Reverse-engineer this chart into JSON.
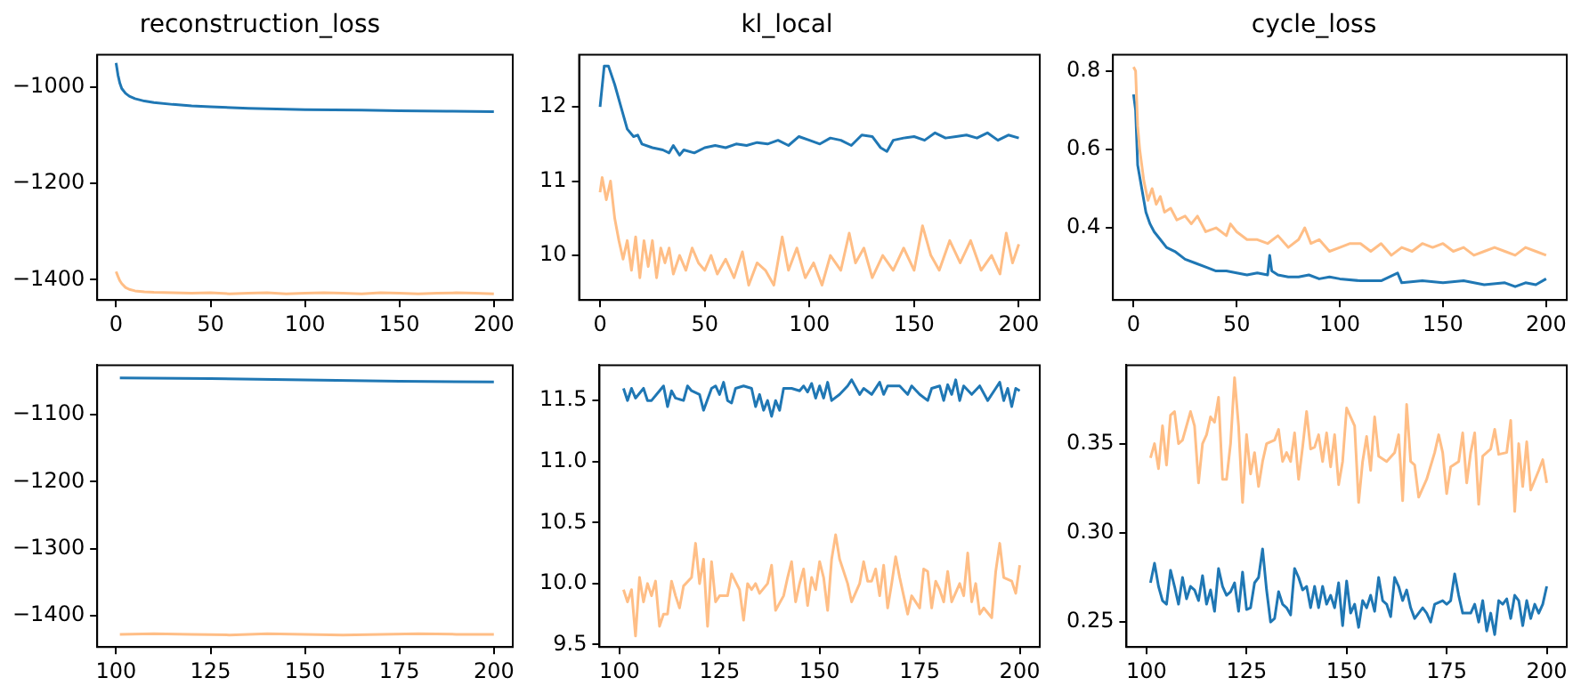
{
  "chart_data": [
    {
      "type": "line",
      "title": "reconstruction_loss",
      "xlim": [
        -10,
        210
      ],
      "xticks": [
        0,
        50,
        100,
        150,
        200
      ],
      "ylim": [
        -1442,
        -933
      ],
      "yticks": [
        {
          "value": -1400,
          "label": "−1400"
        },
        {
          "value": -1200,
          "label": "−1200"
        },
        {
          "value": -1000,
          "label": "−1000"
        }
      ],
      "series": [
        {
          "color": "#1f77b4",
          "x": [
            0,
            1,
            2,
            3,
            5,
            7,
            10,
            15,
            20,
            30,
            40,
            50,
            70,
            100,
            130,
            150,
            175,
            200
          ],
          "values": [
            -950,
            -975,
            -992,
            -1003,
            -1013,
            -1019,
            -1024,
            -1029,
            -1032,
            -1036,
            -1039,
            -1041,
            -1044,
            -1047,
            -1048,
            -1049,
            -1050,
            -1051
          ]
        },
        {
          "color": "#ffbe86",
          "x": [
            0,
            1,
            2,
            3,
            5,
            7,
            10,
            15,
            20,
            30,
            40,
            50,
            60,
            70,
            80,
            90,
            100,
            110,
            120,
            130,
            140,
            150,
            160,
            170,
            180,
            190,
            200
          ],
          "values": [
            -1383,
            -1393,
            -1402,
            -1408,
            -1416,
            -1420,
            -1423,
            -1425,
            -1426,
            -1427,
            -1428,
            -1427,
            -1429,
            -1428,
            -1427,
            -1429,
            -1428,
            -1427,
            -1428,
            -1429,
            -1427,
            -1428,
            -1429,
            -1428,
            -1427,
            -1428,
            -1429
          ]
        }
      ]
    },
    {
      "type": "line",
      "title": "kl_local",
      "xlim": [
        -10,
        210
      ],
      "xticks": [
        0,
        50,
        100,
        150,
        200
      ],
      "ylim": [
        9.4,
        12.7
      ],
      "yticks": [
        10,
        11,
        12
      ],
      "series": [
        {
          "color": "#1f77b4",
          "x": [
            0,
            2,
            4,
            7,
            10,
            13,
            16,
            18,
            20,
            25,
            30,
            33,
            35,
            38,
            40,
            45,
            50,
            55,
            60,
            65,
            70,
            75,
            80,
            85,
            90,
            95,
            100,
            105,
            110,
            115,
            120,
            125,
            130,
            134,
            137,
            140,
            145,
            150,
            155,
            160,
            165,
            170,
            175,
            180,
            185,
            190,
            195,
            200
          ],
          "values": [
            12.0,
            12.55,
            12.55,
            12.3,
            12.0,
            11.7,
            11.6,
            11.62,
            11.5,
            11.45,
            11.42,
            11.38,
            11.48,
            11.35,
            11.42,
            11.38,
            11.45,
            11.48,
            11.45,
            11.5,
            11.48,
            11.52,
            11.5,
            11.55,
            11.48,
            11.6,
            11.55,
            11.5,
            11.58,
            11.55,
            11.48,
            11.62,
            11.6,
            11.45,
            11.4,
            11.55,
            11.58,
            11.6,
            11.55,
            11.65,
            11.58,
            11.6,
            11.62,
            11.58,
            11.65,
            11.55,
            11.62,
            11.58
          ]
        },
        {
          "color": "#ffbe86",
          "x": [
            0,
            1,
            3,
            5,
            7,
            9,
            11,
            13,
            15,
            17,
            19,
            21,
            23,
            25,
            27,
            29,
            31,
            33,
            35,
            38,
            41,
            44,
            47,
            50,
            53,
            56,
            60,
            64,
            68,
            71,
            75,
            79,
            83,
            87,
            90,
            94,
            98,
            102,
            106,
            110,
            115,
            119,
            122,
            126,
            130,
            135,
            140,
            145,
            150,
            154,
            158,
            162,
            167,
            172,
            177,
            182,
            187,
            191,
            194,
            197,
            200
          ],
          "values": [
            10.85,
            11.05,
            10.75,
            11.0,
            10.5,
            10.2,
            9.95,
            10.2,
            9.8,
            10.25,
            9.7,
            10.2,
            9.85,
            10.2,
            9.7,
            10.1,
            9.9,
            10.1,
            9.75,
            10.0,
            9.8,
            10.1,
            9.9,
            9.8,
            10.0,
            9.75,
            9.95,
            9.7,
            10.05,
            9.6,
            9.9,
            9.8,
            9.6,
            10.25,
            9.8,
            10.1,
            9.7,
            9.9,
            9.6,
            10.0,
            9.8,
            10.3,
            9.9,
            10.1,
            9.7,
            10.0,
            9.8,
            10.1,
            9.8,
            10.4,
            10.0,
            9.8,
            10.2,
            9.9,
            10.2,
            9.8,
            10.0,
            9.75,
            10.3,
            9.9,
            10.15
          ]
        }
      ]
    },
    {
      "type": "line",
      "title": "cycle_loss",
      "xlim": [
        -10,
        210
      ],
      "xticks": [
        0,
        50,
        100,
        150,
        200
      ],
      "ylim": [
        0.216,
        0.841
      ],
      "yticks": [
        0.4,
        0.6,
        0.8
      ],
      "series": [
        {
          "color": "#ffbe86",
          "x": [
            0,
            1,
            2,
            3,
            5,
            7,
            9,
            11,
            13,
            15,
            18,
            21,
            25,
            28,
            31,
            35,
            40,
            45,
            47,
            50,
            55,
            60,
            65,
            70,
            75,
            80,
            83,
            86,
            90,
            95,
            100,
            105,
            110,
            115,
            120,
            125,
            130,
            135,
            140,
            145,
            150,
            155,
            160,
            165,
            170,
            175,
            180,
            185,
            190,
            195,
            200
          ],
          "values": [
            0.81,
            0.8,
            0.66,
            0.6,
            0.52,
            0.47,
            0.5,
            0.46,
            0.48,
            0.44,
            0.45,
            0.42,
            0.43,
            0.41,
            0.43,
            0.39,
            0.4,
            0.38,
            0.41,
            0.39,
            0.37,
            0.37,
            0.36,
            0.38,
            0.35,
            0.37,
            0.4,
            0.36,
            0.37,
            0.34,
            0.35,
            0.36,
            0.36,
            0.34,
            0.36,
            0.33,
            0.35,
            0.34,
            0.36,
            0.35,
            0.36,
            0.34,
            0.35,
            0.33,
            0.34,
            0.35,
            0.34,
            0.33,
            0.35,
            0.34,
            0.33
          ]
        },
        {
          "color": "#1f77b4",
          "x": [
            0,
            1,
            2,
            4,
            6,
            8,
            10,
            13,
            16,
            20,
            25,
            30,
            35,
            40,
            45,
            50,
            55,
            60,
            65,
            66,
            67,
            70,
            75,
            80,
            85,
            90,
            95,
            100,
            110,
            120,
            128,
            130,
            140,
            150,
            160,
            170,
            180,
            185,
            190,
            195,
            200
          ],
          "values": [
            0.74,
            0.7,
            0.56,
            0.5,
            0.44,
            0.41,
            0.39,
            0.37,
            0.35,
            0.34,
            0.32,
            0.31,
            0.3,
            0.29,
            0.29,
            0.285,
            0.28,
            0.285,
            0.28,
            0.33,
            0.29,
            0.28,
            0.275,
            0.275,
            0.28,
            0.27,
            0.275,
            0.27,
            0.265,
            0.265,
            0.285,
            0.26,
            0.265,
            0.26,
            0.265,
            0.255,
            0.26,
            0.25,
            0.26,
            0.255,
            0.27
          ]
        }
      ]
    },
    {
      "type": "line",
      "xlim": [
        95,
        205
      ],
      "xticks": [
        100,
        125,
        150,
        175,
        200
      ],
      "ylim": [
        -1447,
        -1026
      ],
      "yticks": [
        {
          "value": -1400,
          "label": "−1400"
        },
        {
          "value": -1300,
          "label": "−1300"
        },
        {
          "value": -1200,
          "label": "−1200"
        },
        {
          "value": -1100,
          "label": "−1100"
        }
      ],
      "series": [
        {
          "color": "#1f77b4",
          "x": [
            101,
            125,
            150,
            175,
            200
          ],
          "values": [
            -1045,
            -1046,
            -1048,
            -1050,
            -1051
          ]
        },
        {
          "color": "#ffbe86",
          "x": [
            101,
            110,
            120,
            130,
            140,
            150,
            160,
            170,
            180,
            190,
            200
          ],
          "values": [
            -1428,
            -1427,
            -1428,
            -1429,
            -1427,
            -1428,
            -1429,
            -1428,
            -1427,
            -1428,
            -1428
          ]
        }
      ]
    },
    {
      "type": "line",
      "xlim": [
        95,
        205
      ],
      "xticks": [
        100,
        125,
        150,
        175,
        200
      ],
      "ylim": [
        9.48,
        11.79
      ],
      "yticks": [
        {
          "value": 9.5,
          "label": "9.5"
        },
        {
          "value": 10,
          "label": "10.0"
        },
        {
          "value": 10.5,
          "label": "10.5"
        },
        {
          "value": 11,
          "label": "11.0"
        },
        {
          "value": 11.5,
          "label": "11.5"
        }
      ],
      "series": [
        {
          "color": "#1f77b4",
          "x": [
            101,
            102,
            103,
            104,
            106,
            107,
            108,
            110,
            111,
            112,
            113,
            114,
            116,
            117,
            118,
            120,
            121,
            123,
            124,
            125,
            126,
            127,
            128,
            129,
            131,
            133,
            134,
            135,
            136,
            137,
            138,
            139,
            140,
            141,
            143,
            145,
            146,
            147,
            148,
            149,
            150,
            151,
            152,
            153,
            155,
            157,
            158,
            160,
            161,
            163,
            165,
            166,
            167,
            170,
            172,
            173,
            175,
            177,
            178,
            180,
            181,
            182,
            183,
            184,
            185,
            186,
            188,
            190,
            192,
            194,
            195,
            196,
            197,
            198,
            199,
            200
          ],
          "values": [
            11.6,
            11.5,
            11.6,
            11.52,
            11.6,
            11.5,
            11.5,
            11.58,
            11.62,
            11.45,
            11.58,
            11.52,
            11.5,
            11.62,
            11.58,
            11.55,
            11.42,
            11.6,
            11.62,
            11.55,
            11.65,
            11.5,
            11.48,
            11.6,
            11.62,
            11.6,
            11.45,
            11.55,
            11.42,
            11.5,
            11.37,
            11.5,
            11.42,
            11.6,
            11.6,
            11.58,
            11.62,
            11.57,
            11.64,
            11.52,
            11.62,
            11.52,
            11.65,
            11.5,
            11.55,
            11.62,
            11.67,
            11.55,
            11.6,
            11.55,
            11.65,
            11.55,
            11.62,
            11.62,
            11.55,
            11.62,
            11.55,
            11.5,
            11.6,
            11.62,
            11.5,
            11.63,
            11.55,
            11.67,
            11.5,
            11.62,
            11.55,
            11.62,
            11.5,
            11.6,
            11.65,
            11.5,
            11.6,
            11.45,
            11.6,
            11.58
          ]
        },
        {
          "color": "#ffbe86",
          "x": [
            101,
            102,
            103,
            104,
            105,
            106,
            107,
            108,
            109,
            110,
            111,
            112,
            113,
            114,
            115,
            116,
            118,
            119,
            120,
            121,
            122,
            123,
            124,
            125,
            127,
            128,
            130,
            131,
            132,
            133,
            134,
            135,
            137,
            138,
            139,
            141,
            142,
            143,
            144,
            145,
            146,
            147,
            148,
            149,
            150,
            151,
            152,
            153,
            154,
            155,
            157,
            158,
            160,
            161,
            162,
            163,
            164,
            165,
            166,
            167,
            168,
            169,
            170,
            171,
            172,
            173,
            175,
            176,
            177,
            178,
            179,
            180,
            181,
            182,
            183,
            185,
            186,
            187,
            188,
            189,
            190,
            191,
            193,
            194,
            195,
            196,
            198,
            199,
            200
          ],
          "values": [
            9.95,
            9.85,
            9.95,
            9.57,
            10.05,
            9.85,
            10.0,
            9.9,
            10.02,
            9.65,
            9.75,
            9.75,
            10.02,
            9.9,
            9.8,
            9.98,
            10.05,
            10.33,
            10.0,
            10.2,
            9.65,
            10.18,
            9.85,
            9.9,
            9.9,
            10.08,
            9.95,
            9.7,
            10.0,
            9.95,
            10.0,
            9.92,
            10.0,
            10.15,
            9.78,
            9.9,
            10.05,
            10.18,
            9.85,
            10.0,
            10.12,
            9.82,
            10.05,
            9.95,
            10.18,
            10.05,
            9.78,
            10.2,
            10.4,
            10.2,
            10.0,
            9.85,
            10.0,
            10.18,
            10.02,
            10.02,
            10.12,
            9.9,
            10.15,
            9.8,
            10.0,
            10.22,
            10.05,
            9.9,
            9.75,
            9.9,
            9.8,
            10.12,
            10.1,
            9.8,
            10.02,
            9.95,
            9.85,
            10.1,
            9.85,
            10.0,
            9.9,
            10.25,
            9.85,
            10.0,
            9.75,
            9.8,
            9.72,
            10.1,
            10.33,
            10.05,
            10.02,
            9.92,
            10.15
          ]
        }
      ]
    },
    {
      "type": "line",
      "xlim": [
        95,
        205
      ],
      "xticks": [
        100,
        125,
        150,
        175,
        200
      ],
      "ylim": [
        0.236,
        0.394
      ],
      "yticks": [
        {
          "value": 0.25,
          "label": "0.25"
        },
        {
          "value": 0.3,
          "label": "0.30"
        },
        {
          "value": 0.35,
          "label": "0.35"
        }
      ],
      "series": [
        {
          "color": "#ffbe86",
          "x": [
            101,
            102,
            103,
            104,
            105,
            106,
            107,
            108,
            109,
            110,
            111,
            112,
            113,
            114,
            115,
            116,
            117,
            118,
            119,
            120,
            121,
            122,
            123,
            124,
            125,
            126,
            127,
            128,
            129,
            130,
            132,
            133,
            134,
            135,
            136,
            137,
            138,
            139,
            140,
            141,
            142,
            143,
            144,
            145,
            146,
            147,
            148,
            149,
            150,
            152,
            153,
            154,
            155,
            156,
            157,
            158,
            160,
            162,
            163,
            164,
            165,
            166,
            167,
            168,
            170,
            172,
            173,
            174,
            175,
            176,
            178,
            179,
            180,
            181,
            182,
            183,
            184,
            186,
            187,
            188,
            190,
            191,
            192,
            193,
            194,
            195,
            196,
            198,
            199,
            200
          ],
          "values": [
            0.342,
            0.35,
            0.336,
            0.36,
            0.338,
            0.366,
            0.368,
            0.35,
            0.352,
            0.36,
            0.368,
            0.36,
            0.328,
            0.35,
            0.355,
            0.365,
            0.362,
            0.376,
            0.33,
            0.33,
            0.35,
            0.387,
            0.36,
            0.317,
            0.355,
            0.333,
            0.345,
            0.326,
            0.34,
            0.35,
            0.352,
            0.358,
            0.34,
            0.345,
            0.34,
            0.356,
            0.33,
            0.348,
            0.368,
            0.347,
            0.348,
            0.355,
            0.34,
            0.356,
            0.337,
            0.355,
            0.327,
            0.34,
            0.37,
            0.36,
            0.317,
            0.34,
            0.354,
            0.335,
            0.365,
            0.343,
            0.34,
            0.345,
            0.355,
            0.318,
            0.372,
            0.34,
            0.338,
            0.32,
            0.33,
            0.345,
            0.355,
            0.345,
            0.322,
            0.337,
            0.34,
            0.356,
            0.328,
            0.345,
            0.356,
            0.316,
            0.343,
            0.347,
            0.358,
            0.344,
            0.345,
            0.363,
            0.312,
            0.35,
            0.326,
            0.351,
            0.324,
            0.335,
            0.341,
            0.328
          ]
        },
        {
          "color": "#1f77b4",
          "x": [
            101,
            102,
            103,
            104,
            105,
            106,
            107,
            108,
            109,
            110,
            111,
            112,
            113,
            114,
            115,
            116,
            117,
            118,
            119,
            120,
            121,
            122,
            123,
            124,
            125,
            126,
            127,
            128,
            129,
            130,
            131,
            132,
            133,
            134,
            135,
            136,
            137,
            138,
            139,
            140,
            141,
            142,
            143,
            144,
            145,
            146,
            147,
            148,
            149,
            150,
            151,
            152,
            153,
            154,
            155,
            156,
            157,
            158,
            159,
            160,
            161,
            162,
            163,
            164,
            165,
            166,
            167,
            168,
            169,
            170,
            171,
            172,
            174,
            175,
            176,
            177,
            178,
            179,
            181,
            182,
            183,
            184,
            185,
            186,
            187,
            188,
            189,
            190,
            191,
            192,
            193,
            194,
            195,
            196,
            197,
            198,
            199,
            200
          ],
          "values": [
            0.272,
            0.283,
            0.27,
            0.262,
            0.26,
            0.279,
            0.27,
            0.26,
            0.275,
            0.263,
            0.27,
            0.268,
            0.262,
            0.276,
            0.26,
            0.268,
            0.256,
            0.28,
            0.27,
            0.265,
            0.267,
            0.272,
            0.256,
            0.278,
            0.257,
            0.258,
            0.272,
            0.275,
            0.291,
            0.268,
            0.25,
            0.252,
            0.267,
            0.26,
            0.258,
            0.254,
            0.28,
            0.275,
            0.268,
            0.27,
            0.258,
            0.27,
            0.258,
            0.27,
            0.26,
            0.265,
            0.258,
            0.272,
            0.248,
            0.273,
            0.255,
            0.26,
            0.247,
            0.262,
            0.258,
            0.265,
            0.256,
            0.275,
            0.262,
            0.26,
            0.253,
            0.275,
            0.27,
            0.262,
            0.268,
            0.258,
            0.252,
            0.255,
            0.258,
            0.255,
            0.25,
            0.26,
            0.262,
            0.26,
            0.262,
            0.277,
            0.265,
            0.255,
            0.255,
            0.26,
            0.25,
            0.262,
            0.245,
            0.255,
            0.243,
            0.262,
            0.26,
            0.263,
            0.252,
            0.265,
            0.262,
            0.248,
            0.262,
            0.252,
            0.26,
            0.255,
            0.26,
            0.27
          ]
        }
      ]
    }
  ]
}
